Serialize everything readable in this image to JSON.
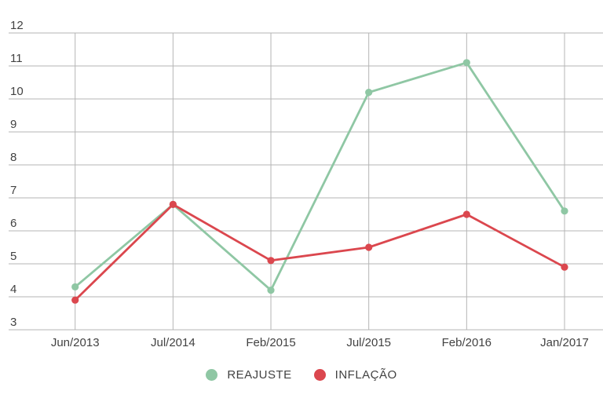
{
  "chart_data": {
    "type": "line",
    "title": "",
    "categories": [
      "Jun/2013",
      "Jul/2014",
      "Feb/2015",
      "Jul/2015",
      "Feb/2016",
      "Jan/2017"
    ],
    "series": [
      {
        "name": "REAJUSTE",
        "color": "#8fc7a4",
        "values": [
          4.3,
          6.8,
          4.2,
          10.2,
          11.1,
          6.6
        ]
      },
      {
        "name": "INFLAÇÃO",
        "color": "#db474e",
        "values": [
          3.9,
          6.8,
          5.1,
          5.5,
          6.5,
          4.9
        ]
      }
    ],
    "y_axis": {
      "min": 3,
      "max": 12,
      "tick_step": 1,
      "tick_labels": [
        "12",
        "11",
        "10",
        "9",
        "8",
        "7",
        "6",
        "5",
        "4",
        "3"
      ]
    },
    "x_axis": {
      "label": ""
    },
    "grid": true,
    "legend_position": "bottom",
    "colors": {
      "grid": "#b5b5b5",
      "text": "#424242",
      "background": "#ffffff"
    }
  }
}
